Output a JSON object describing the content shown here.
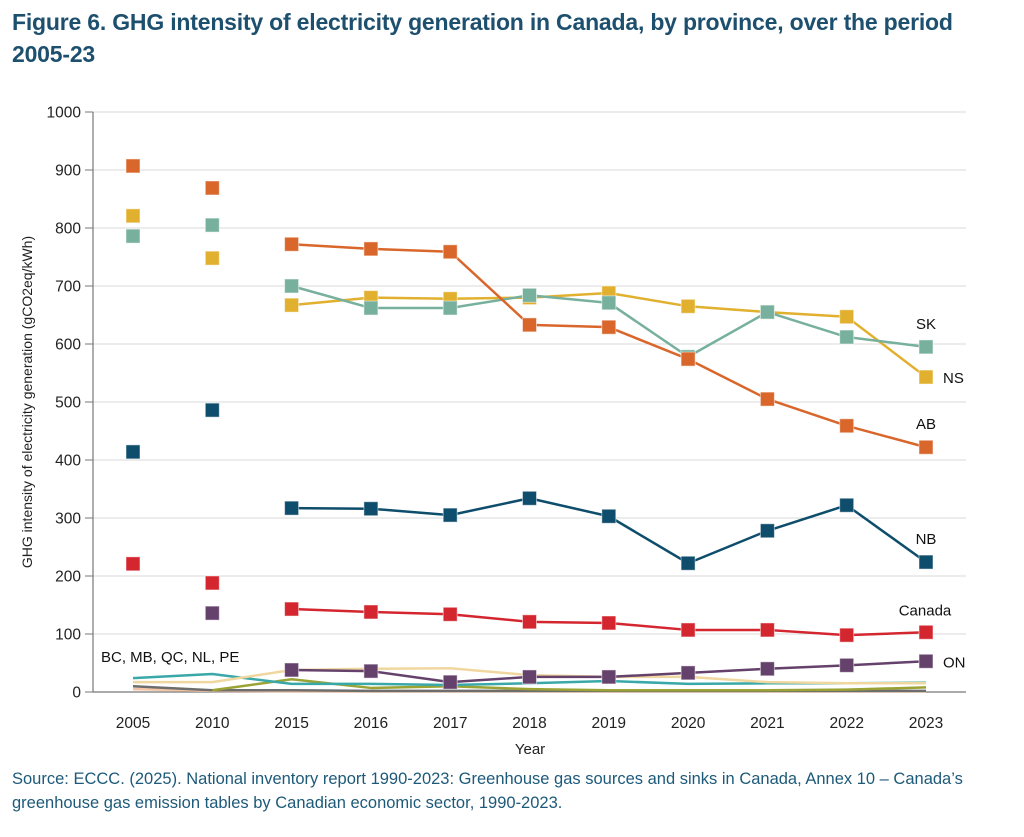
{
  "figure": {
    "title": "Figure 6. GHG intensity of electricity generation in Canada, by province, over the period 2005-23",
    "source": "Source: ECCC. (2025). National inventory report 1990-2023: Greenhouse gas sources and sinks in Canada, Annex 10 – Canada’s greenhouse gas emission tables by Canadian economic sector, 1990-2023."
  },
  "chart_data": {
    "type": "line",
    "title": "Figure 6. GHG intensity of electricity generation in Canada, by province, over the period 2005-23",
    "xlabel": "Year",
    "ylabel": "GHG intensity of electricity generation (gCO2eq/kWh)",
    "ylim": [
      0,
      1000
    ],
    "yticks": [
      0,
      100,
      200,
      300,
      400,
      500,
      600,
      700,
      800,
      900,
      1000
    ],
    "grid": true,
    "legend": "direct labels at right end of lines",
    "categories": [
      "2005",
      "2010",
      "2015",
      "2016",
      "2017",
      "2018",
      "2019",
      "2020",
      "2021",
      "2022",
      "2023"
    ],
    "group_label": "BC, MB, QC, NL, PE",
    "series": [
      {
        "name": "AB",
        "label": "AB",
        "color": "#d9662b",
        "markers": true,
        "label_pos": "above",
        "values": [
          907,
          869,
          772,
          764,
          759,
          633,
          629,
          574,
          505,
          459,
          422
        ]
      },
      {
        "name": "SK",
        "label": "SK",
        "color": "#78b09e",
        "markers": true,
        "label_pos": "above",
        "values": [
          786,
          805,
          700,
          662,
          662,
          684,
          671,
          578,
          655,
          612,
          595
        ]
      },
      {
        "name": "NS",
        "label": "NS",
        "color": "#e2b02f",
        "markers": true,
        "label_pos": "right",
        "values": [
          821,
          748,
          667,
          680,
          678,
          680,
          688,
          665,
          655,
          647,
          543
        ]
      },
      {
        "name": "NB",
        "label": "NB",
        "color": "#0e4d6b",
        "markers": true,
        "label_pos": "above",
        "values": [
          414,
          486,
          317,
          316,
          305,
          334,
          303,
          222,
          278,
          322,
          224
        ]
      },
      {
        "name": "Canada",
        "label": "Canada",
        "color": "#d4262f",
        "markers": true,
        "label_pos": "above",
        "values": [
          221,
          188,
          143,
          138,
          134,
          121,
          119,
          107,
          107,
          98,
          103
        ]
      },
      {
        "name": "ON",
        "label": "ON",
        "color": "#65426b",
        "markers": true,
        "label_pos": "right",
        "values": [
          null,
          136,
          38,
          36,
          17,
          26,
          26,
          33,
          40,
          46,
          53
        ]
      },
      {
        "name": "BC",
        "label": "",
        "color": "#f0d79f",
        "markers": false,
        "values": [
          17,
          17,
          38,
          40,
          41,
          29,
          26,
          26,
          17,
          15,
          15
        ]
      },
      {
        "name": "MB",
        "label": "",
        "color": "#3aa8a8",
        "markers": false,
        "values": [
          24,
          31,
          14,
          14,
          12,
          15,
          19,
          14,
          15,
          15,
          16
        ]
      },
      {
        "name": "QC",
        "label": "",
        "color": "#9aa334",
        "markers": false,
        "values": [
          null,
          3,
          22,
          7,
          10,
          5,
          3,
          3,
          3,
          4,
          8
        ]
      },
      {
        "name": "NL",
        "label": "",
        "color": "#6d6d6d",
        "markers": false,
        "values": [
          10,
          3,
          3,
          2,
          2,
          2,
          2,
          2,
          2,
          2,
          2
        ]
      },
      {
        "name": "PE",
        "label": "",
        "color": "#f3c4a6",
        "markers": false,
        "values": [
          5,
          2,
          1,
          1,
          1,
          1,
          1,
          1,
          1,
          1,
          1
        ]
      }
    ]
  }
}
